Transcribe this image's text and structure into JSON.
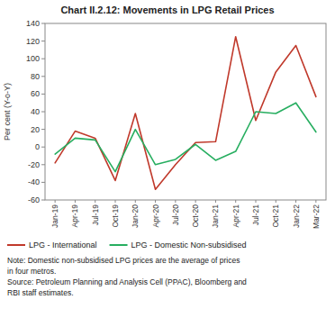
{
  "chart_data": {
    "type": "line",
    "title": "Chart II.2.12: Movements in LPG Retail Prices",
    "y_label": "Per cent (Y-o-Y)",
    "categories": [
      "Jan-19",
      "Apr-19",
      "Jul-19",
      "Oct-19",
      "Jan-20",
      "Apr-20",
      "Jul-20",
      "Oct-20",
      "Jan-21",
      "Apr-21",
      "Jul-21",
      "Oct-21",
      "Jan-22",
      "Mar-22"
    ],
    "series": [
      {
        "name": "LPG - International",
        "color": "#c0392b",
        "values": [
          -18,
          18,
          10,
          -38,
          38,
          -48,
          -20,
          5,
          6,
          125,
          30,
          85,
          115,
          57
        ]
      },
      {
        "name": "LPG - Domestic Non-subsidised",
        "color": "#27ae60",
        "values": [
          -8,
          10,
          8,
          -28,
          20,
          -20,
          -14,
          3,
          -15,
          -5,
          40,
          38,
          50,
          17
        ]
      }
    ],
    "ylim": [
      -60,
      140
    ],
    "yticks": [
      -60,
      -40,
      -20,
      0,
      20,
      40,
      60,
      80,
      100,
      120,
      140
    ],
    "grid": false,
    "legend": "bottom",
    "annotations": [
      "Note: Domestic non-subsidised LPG prices are the average of prices",
      "in four metros.",
      "Source: Petroleum Planning and Analysis Cell (PPAC), Bloomberg and",
      "RBI staff estimates."
    ]
  }
}
